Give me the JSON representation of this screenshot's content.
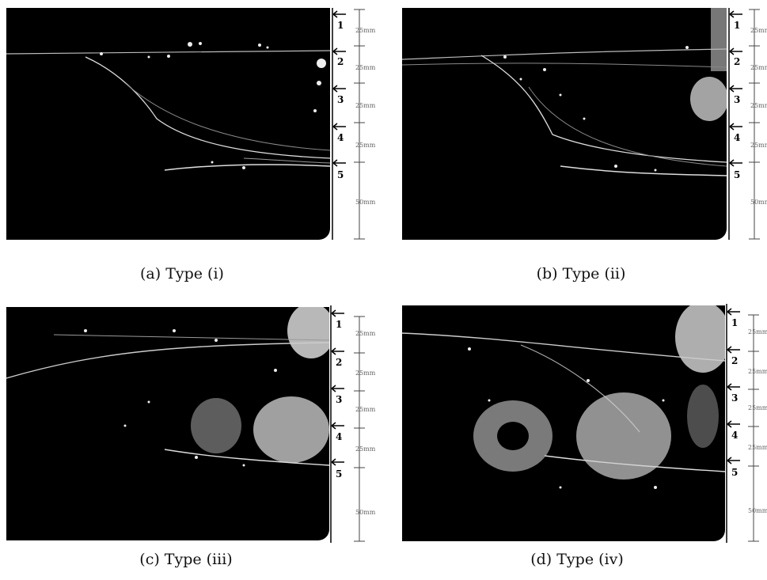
{
  "panels": [
    {
      "caption": "(a) Type (i)",
      "ruler_numbers": [
        "1",
        "2",
        "3",
        "4",
        "5"
      ],
      "ruler_spacings": [
        "25mm",
        "25mm",
        "25mm",
        "25mm",
        "50mm"
      ]
    },
    {
      "caption": "(b) Type (ii)",
      "ruler_numbers": [
        "1",
        "2",
        "3",
        "4",
        "5"
      ],
      "ruler_spacings": [
        "25mm",
        "25mm",
        "25mm",
        "25mm",
        "50mm"
      ]
    },
    {
      "caption": "(c) Type (iii)",
      "ruler_numbers": [
        "1",
        "2",
        "3",
        "4",
        "5"
      ],
      "ruler_spacings": [
        "25mm",
        "25mm",
        "25mm",
        "25mm",
        "50mm"
      ]
    },
    {
      "caption": "(d) Type (iv)",
      "ruler_numbers": [
        "1",
        "2",
        "3",
        "4",
        "5"
      ],
      "ruler_spacings": [
        "25mm",
        "25mm",
        "25mm",
        "25mm",
        "50mm"
      ]
    }
  ]
}
